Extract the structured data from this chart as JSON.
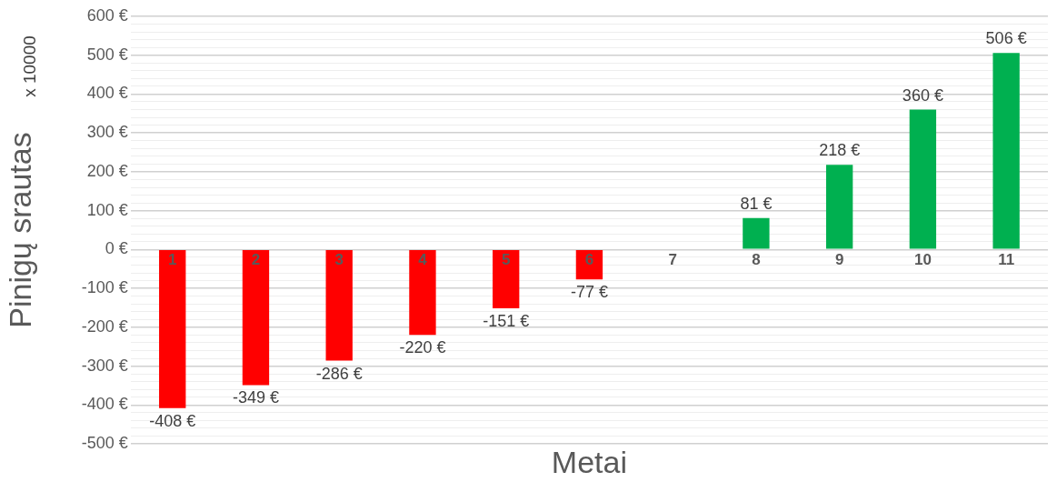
{
  "chart_data": {
    "type": "bar",
    "xlabel": "Metai",
    "ylabel": "Pinigų srautas",
    "annotations": [
      "x 10000"
    ],
    "categories": [
      "1",
      "2",
      "3",
      "4",
      "5",
      "6",
      "7",
      "8",
      "9",
      "10",
      "11"
    ],
    "values": [
      -408,
      -349,
      -286,
      -220,
      -151,
      -77,
      null,
      81,
      218,
      360,
      506
    ],
    "colors": [
      "#ff0000",
      "#ff0000",
      "#ff0000",
      "#ff0000",
      "#ff0000",
      "#ff0000",
      "#ff0000",
      "#00b050",
      "#00b050",
      "#00b050",
      "#00b050"
    ],
    "value_labels": [
      "-408 €",
      "-349 €",
      "-286 €",
      "-220 €",
      "-151 €",
      "-77 €",
      null,
      "81 €",
      "218 €",
      "360 €",
      "506 €"
    ],
    "ylim": [
      -500,
      600
    ],
    "yticks": [
      {
        "value": -500,
        "label": "-500 €"
      },
      {
        "value": -480,
        "label": null
      },
      {
        "value": -460,
        "label": null
      },
      {
        "value": -440,
        "label": null
      },
      {
        "value": -420,
        "label": null
      },
      {
        "value": -400,
        "label": "-400 €"
      },
      {
        "value": -380,
        "label": null
      },
      {
        "value": -360,
        "label": null
      },
      {
        "value": -340,
        "label": null
      },
      {
        "value": -320,
        "label": null
      },
      {
        "value": -300,
        "label": "-300 €"
      },
      {
        "value": -280,
        "label": null
      },
      {
        "value": -260,
        "label": null
      },
      {
        "value": -240,
        "label": null
      },
      {
        "value": -220,
        "label": null
      },
      {
        "value": -200,
        "label": "-200 €"
      },
      {
        "value": -180,
        "label": null
      },
      {
        "value": -160,
        "label": null
      },
      {
        "value": -140,
        "label": null
      },
      {
        "value": -120,
        "label": null
      },
      {
        "value": -100,
        "label": "-100 €"
      },
      {
        "value": -80,
        "label": null
      },
      {
        "value": -60,
        "label": null
      },
      {
        "value": -40,
        "label": null
      },
      {
        "value": -20,
        "label": null
      },
      {
        "value": 0,
        "label": "0 €"
      },
      {
        "value": 20,
        "label": null
      },
      {
        "value": 40,
        "label": null
      },
      {
        "value": 60,
        "label": null
      },
      {
        "value": 80,
        "label": null
      },
      {
        "value": 100,
        "label": "100 €"
      },
      {
        "value": 120,
        "label": null
      },
      {
        "value": 140,
        "label": null
      },
      {
        "value": 160,
        "label": null
      },
      {
        "value": 180,
        "label": null
      },
      {
        "value": 200,
        "label": "200 €"
      },
      {
        "value": 220,
        "label": null
      },
      {
        "value": 240,
        "label": null
      },
      {
        "value": 260,
        "label": null
      },
      {
        "value": 280,
        "label": null
      },
      {
        "value": 300,
        "label": "300 €"
      },
      {
        "value": 320,
        "label": null
      },
      {
        "value": 340,
        "label": null
      },
      {
        "value": 360,
        "label": null
      },
      {
        "value": 380,
        "label": null
      },
      {
        "value": 400,
        "label": "400 €"
      },
      {
        "value": 420,
        "label": null
      },
      {
        "value": 440,
        "label": null
      },
      {
        "value": 460,
        "label": null
      },
      {
        "value": 480,
        "label": null
      },
      {
        "value": 500,
        "label": "500 €"
      },
      {
        "value": 520,
        "label": null
      },
      {
        "value": 540,
        "label": null
      },
      {
        "value": 560,
        "label": null
      },
      {
        "value": 580,
        "label": null
      },
      {
        "value": 600,
        "label": "600 €"
      }
    ],
    "grid": "y",
    "legend": false
  }
}
